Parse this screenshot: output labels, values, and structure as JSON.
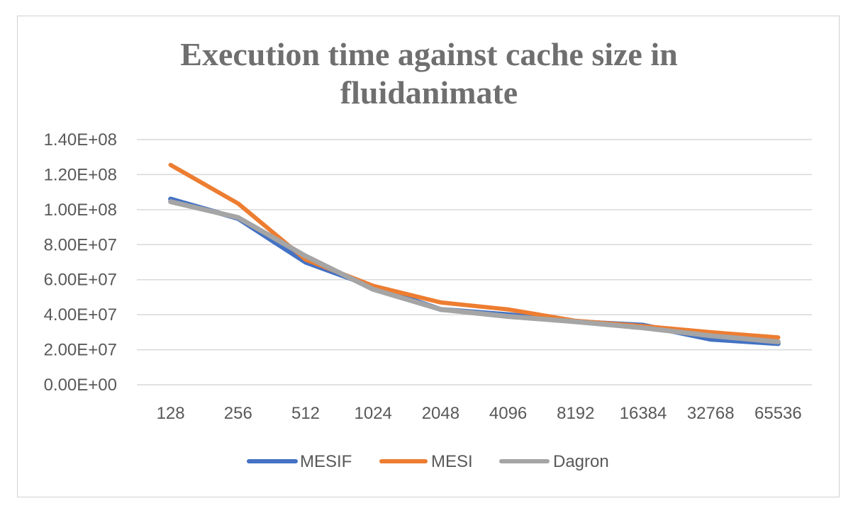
{
  "chart_data": {
    "type": "line",
    "title": "Execution time against cache size in fluidanimate",
    "title_lines": [
      "Execution time against cache size in",
      "fluidanimate"
    ],
    "xlabel": "",
    "ylabel": "",
    "categories": [
      "128",
      "256",
      "512",
      "1024",
      "2048",
      "4096",
      "8192",
      "16384",
      "32768",
      "65536"
    ],
    "ylim": [
      0,
      140000000
    ],
    "yticks": [
      0,
      20000000,
      40000000,
      60000000,
      80000000,
      100000000,
      120000000,
      140000000
    ],
    "ytick_labels": [
      "0.00E+00",
      "2.00E+07",
      "4.00E+07",
      "6.00E+07",
      "8.00E+07",
      "1.00E+08",
      "1.20E+08",
      "1.40E+08"
    ],
    "grid": true,
    "legend_position": "bottom",
    "series": [
      {
        "name": "MESIF",
        "color": "#4472c4",
        "values": [
          106000000,
          95000000,
          70000000,
          56000000,
          43000000,
          40000000,
          36000000,
          34000000,
          26000000,
          23500000
        ]
      },
      {
        "name": "MESI",
        "color": "#ed7d31",
        "values": [
          125500000,
          103500000,
          71500000,
          56500000,
          47000000,
          43000000,
          36500000,
          33500000,
          30000000,
          27000000
        ]
      },
      {
        "name": "Dagron",
        "color": "#a5a5a5",
        "values": [
          104500000,
          95500000,
          73500000,
          54500000,
          43000000,
          39000000,
          36000000,
          32500000,
          28000000,
          24500000
        ]
      }
    ]
  }
}
